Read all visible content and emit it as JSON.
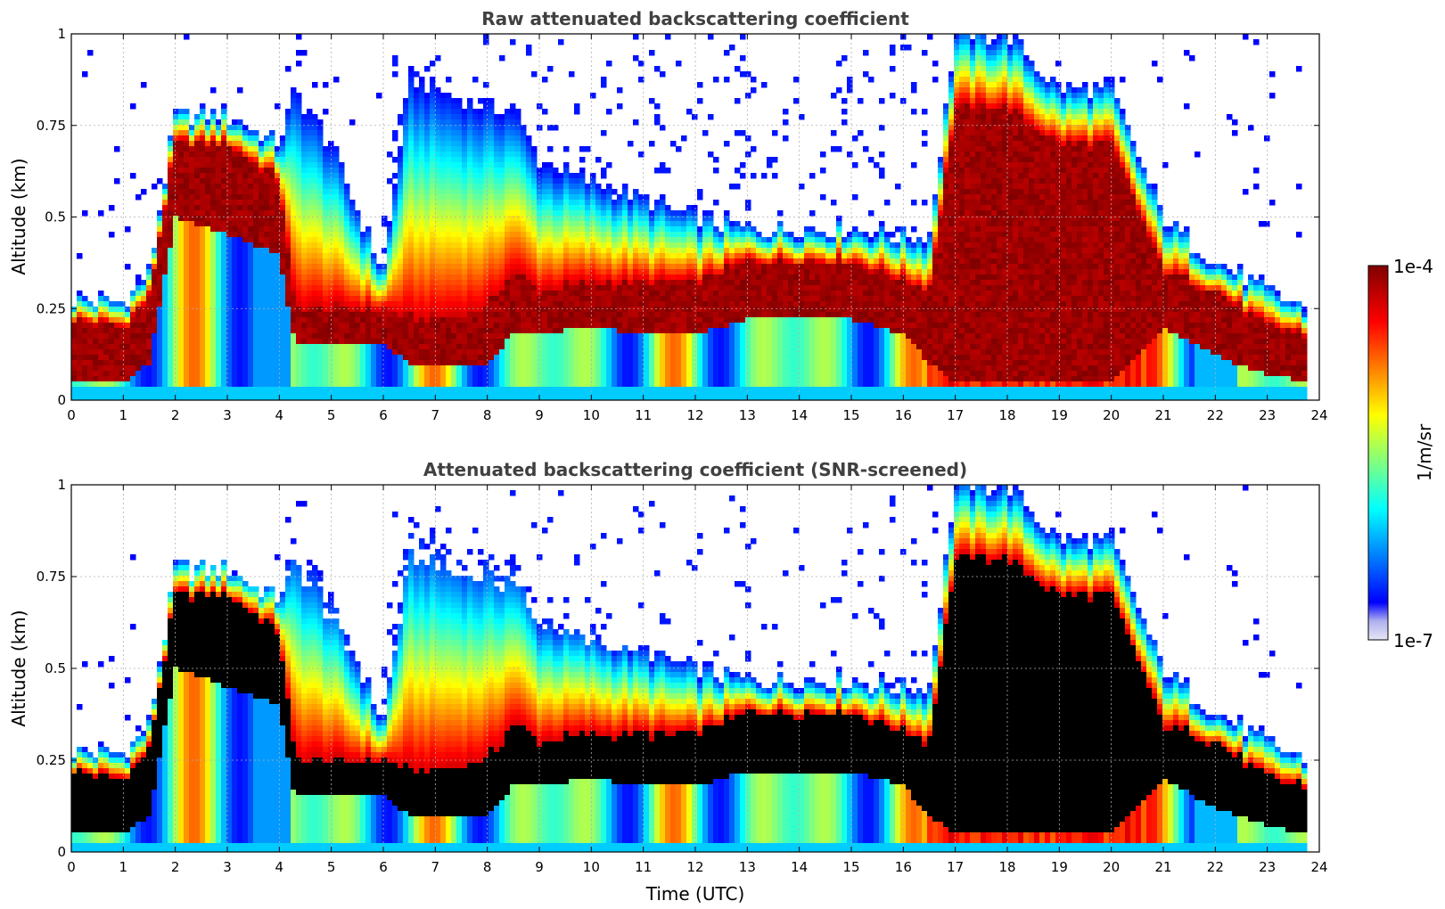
{
  "chart_data": [
    {
      "type": "heatmap",
      "title": "Raw attenuated backscattering coefficient",
      "xlabel": "",
      "ylabel": "Altitude (km)",
      "xlim": [
        0,
        24
      ],
      "ylim": [
        0,
        1
      ],
      "x_ticks": [
        "0",
        "1",
        "2",
        "3",
        "4",
        "5",
        "6",
        "7",
        "8",
        "9",
        "10",
        "11",
        "12",
        "13",
        "14",
        "15",
        "16",
        "17",
        "18",
        "19",
        "20",
        "21",
        "22",
        "23",
        "24"
      ],
      "y_ticks": [
        "0",
        "0.25",
        "0.5",
        "0.75",
        "1"
      ],
      "grid": true,
      "screened": false,
      "layers": {
        "time_h": [
          0,
          1,
          1.5,
          2,
          3,
          4,
          4.3,
          5,
          6,
          6.5,
          7,
          8,
          8.5,
          9,
          10,
          11,
          12,
          13,
          14,
          15,
          16,
          16.5,
          17,
          18,
          19,
          20,
          21,
          22,
          23,
          23.8
        ],
        "mixed_layer_top_km": [
          0.28,
          0.27,
          0.35,
          0.78,
          0.78,
          0.7,
          0.85,
          0.7,
          0.35,
          0.88,
          0.85,
          0.8,
          0.8,
          0.65,
          0.6,
          0.55,
          0.5,
          0.47,
          0.47,
          0.47,
          0.45,
          0.45,
          1.0,
          1.0,
          0.85,
          0.85,
          0.5,
          0.38,
          0.3,
          0.25
        ],
        "dense_layer_top_km": [
          0.22,
          0.2,
          0.28,
          0.7,
          0.7,
          0.6,
          0.25,
          0.25,
          0.25,
          0.22,
          0.22,
          0.25,
          0.35,
          0.3,
          0.32,
          0.32,
          0.32,
          0.38,
          0.38,
          0.38,
          0.33,
          0.3,
          0.8,
          0.8,
          0.7,
          0.7,
          0.35,
          0.3,
          0.2,
          0.18
        ],
        "dense_layer_bottom_km": [
          0.05,
          0.05,
          0.1,
          0.5,
          0.45,
          0.4,
          0.15,
          0.15,
          0.15,
          0.1,
          0.1,
          0.1,
          0.18,
          0.18,
          0.2,
          0.18,
          0.18,
          0.22,
          0.22,
          0.22,
          0.18,
          0.1,
          0.05,
          0.05,
          0.05,
          0.05,
          0.2,
          0.12,
          0.07,
          0.05
        ]
      }
    },
    {
      "type": "heatmap",
      "title": "Attenuated backscattering coefficient (SNR-screened)",
      "xlabel": "Time (UTC)",
      "ylabel": "Altitude (km)",
      "xlim": [
        0,
        24
      ],
      "ylim": [
        0,
        1
      ],
      "x_ticks": [
        "0",
        "1",
        "2",
        "3",
        "4",
        "5",
        "6",
        "7",
        "8",
        "9",
        "10",
        "11",
        "12",
        "13",
        "14",
        "15",
        "16",
        "17",
        "18",
        "19",
        "20",
        "21",
        "22",
        "23",
        "24"
      ],
      "y_ticks": [
        "0",
        "0.25",
        "0.5",
        "0.75",
        "1"
      ],
      "grid": true,
      "screened": true,
      "saturated_color": "#000000"
    }
  ],
  "colorbar": {
    "label": "1/m/sr",
    "max_label": "1e-4",
    "min_label": "1e-7",
    "scale": "log",
    "range": [
      1e-07,
      0.0001
    ],
    "colormap": [
      "#e6e6f5",
      "#0000ff",
      "#00ffff",
      "#ffff00",
      "#ff0000",
      "#800000"
    ]
  }
}
